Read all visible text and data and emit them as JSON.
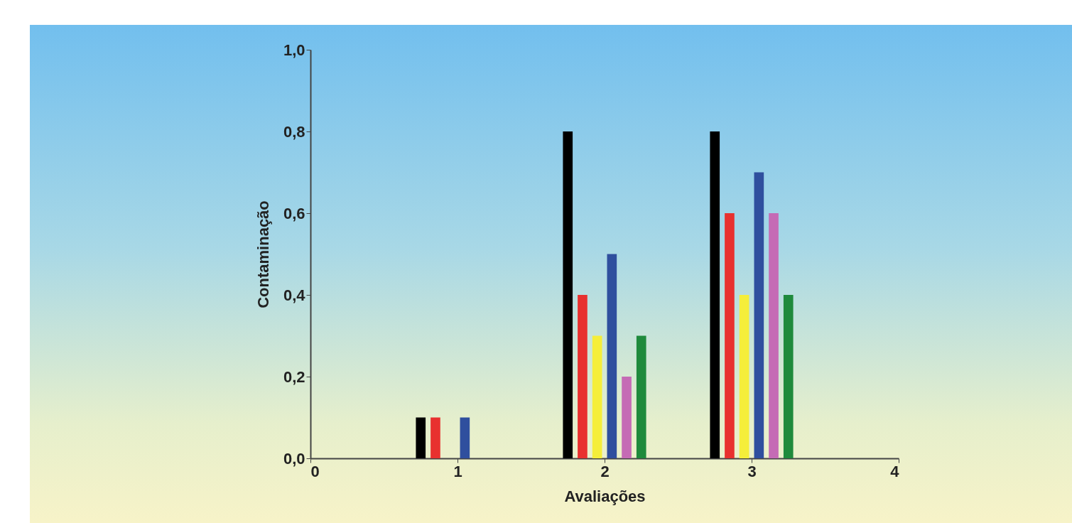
{
  "chart_data": {
    "type": "bar",
    "xlabel": "Avaliações",
    "ylabel": "Contaminação",
    "x": [
      1,
      2,
      3
    ],
    "series": [
      {
        "color": "#000000",
        "values": [
          0.1,
          0.8,
          0.8
        ]
      },
      {
        "color": "#e8312f",
        "values": [
          0.1,
          0.4,
          0.6
        ]
      },
      {
        "color": "#f5ee3a",
        "values": [
          null,
          0.3,
          0.4
        ]
      },
      {
        "color": "#2f4f9e",
        "values": [
          0.1,
          0.5,
          0.7
        ]
      },
      {
        "color": "#c56bb5",
        "values": [
          null,
          0.2,
          0.6
        ]
      },
      {
        "color": "#1f8a3c",
        "values": [
          null,
          0.3,
          0.4
        ]
      }
    ],
    "xlim": [
      0,
      4
    ],
    "xticks": [
      0,
      1,
      2,
      3,
      4
    ],
    "ylim": [
      0,
      1.0
    ],
    "yticks": [
      {
        "value": 0,
        "label": "0,0"
      },
      {
        "value": 0.2,
        "label": "0,2"
      },
      {
        "value": 0.4,
        "label": "0,4"
      },
      {
        "value": 0.6,
        "label": "0,6"
      },
      {
        "value": 0.8,
        "label": "0,8"
      },
      {
        "value": 1.0,
        "label": "1,0"
      }
    ],
    "grid": false,
    "legend": false
  }
}
